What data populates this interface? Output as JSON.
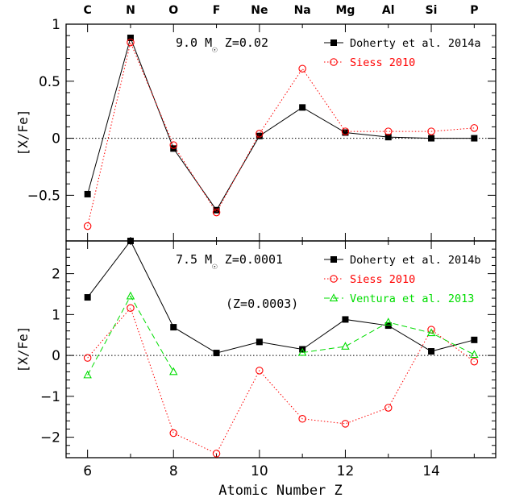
{
  "chart_data": {
    "type": "line",
    "xlabel": "Atomic Number Z",
    "xlim": [
      5.5,
      15.5
    ],
    "x_ticks": [
      6,
      8,
      10,
      12,
      14
    ],
    "element_labels": [
      {
        "z": 6,
        "label": "C"
      },
      {
        "z": 7,
        "label": "N"
      },
      {
        "z": 8,
        "label": "O"
      },
      {
        "z": 9,
        "label": "F"
      },
      {
        "z": 10,
        "label": "Ne"
      },
      {
        "z": 11,
        "label": "Na"
      },
      {
        "z": 12,
        "label": "Mg"
      },
      {
        "z": 13,
        "label": "Al"
      },
      {
        "z": 14,
        "label": "Si"
      },
      {
        "z": 15,
        "label": "P"
      }
    ],
    "panels": [
      {
        "id": "top",
        "ylabel": "[X/Fe]",
        "ylim": [
          -0.9,
          1.0
        ],
        "y_ticks": [
          -0.5,
          0,
          0.5,
          1
        ],
        "y_tick_labels": [
          "−0.5",
          "0",
          "0.5",
          "1"
        ],
        "annotation_prefix": "9.0 M",
        "annotation_suffix": " Z=0.02",
        "note": "",
        "legend_position": "top-right",
        "series": [
          {
            "name": "Doherty et al. 2014a",
            "color": "#000000",
            "marker": "square",
            "line": "solid",
            "x": [
              6,
              7,
              8,
              9,
              10,
              11,
              12,
              13,
              14,
              15
            ],
            "y": [
              -0.49,
              0.88,
              -0.09,
              -0.63,
              0.02,
              0.27,
              0.05,
              0.01,
              0.0,
              0.0
            ]
          },
          {
            "name": "Siess 2010",
            "color": "#ff0000",
            "marker": "circle",
            "line": "dotted",
            "x": [
              6,
              7,
              8,
              9,
              10,
              11,
              12,
              13,
              14,
              15
            ],
            "y": [
              -0.77,
              0.84,
              -0.06,
              -0.65,
              0.04,
              0.61,
              0.06,
              0.06,
              0.06,
              0.09
            ]
          }
        ]
      },
      {
        "id": "bottom",
        "ylabel": "[X/Fe]",
        "ylim": [
          -2.5,
          2.8
        ],
        "y_ticks": [
          -2,
          -1,
          0,
          1,
          2
        ],
        "y_tick_labels": [
          "−2",
          "−1",
          "0",
          "1",
          "2"
        ],
        "annotation_prefix": "7.5 M",
        "annotation_suffix": " Z=0.0001",
        "note": "(Z=0.0003)",
        "legend_position": "top-right",
        "series": [
          {
            "name": "Doherty et al. 2014b",
            "color": "#000000",
            "marker": "square",
            "line": "solid",
            "segments": [
              {
                "x": [
                  6,
                  7,
                  8,
                  9,
                  10,
                  11,
                  12,
                  13,
                  14,
                  15
                ],
                "y": [
                  1.42,
                  2.8,
                  0.69,
                  0.06,
                  0.33,
                  0.15,
                  0.88,
                  0.73,
                  0.1,
                  0.38
                ]
              }
            ]
          },
          {
            "name": "Siess 2010",
            "color": "#ff0000",
            "marker": "circle",
            "line": "dotted",
            "segments": [
              {
                "x": [
                  6,
                  7,
                  8,
                  9,
                  10,
                  11,
                  12,
                  13,
                  14,
                  15
                ],
                "y": [
                  -0.06,
                  1.16,
                  -1.9,
                  -2.4,
                  -0.37,
                  -1.55,
                  -1.67,
                  -1.28,
                  0.63,
                  -0.15
                ]
              }
            ]
          },
          {
            "name": "Ventura et al. 2013",
            "color": "#00dd00",
            "marker": "triangle",
            "line": "dashed",
            "segments": [
              {
                "x": [
                  6,
                  7,
                  8
                ],
                "y": [
                  -0.48,
                  1.45,
                  -0.4
                ]
              },
              {
                "x": [
                  11,
                  12,
                  13,
                  14,
                  15
                ],
                "y": [
                  0.07,
                  0.22,
                  0.81,
                  0.55,
                  0.02
                ]
              }
            ]
          }
        ]
      }
    ]
  }
}
